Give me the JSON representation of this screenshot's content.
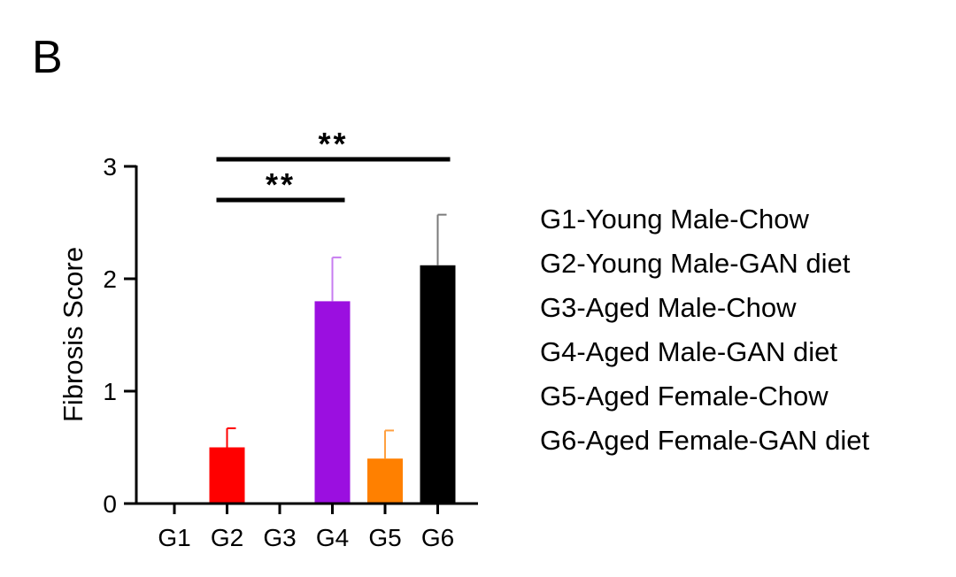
{
  "chart_data": {
    "type": "bar",
    "panel_label": "B",
    "title": "",
    "xlabel": "",
    "ylabel": "Fibrosis Score",
    "ylim": [
      0,
      3
    ],
    "yticks": [
      0,
      1,
      2,
      3
    ],
    "categories": [
      "G1",
      "G2",
      "G3",
      "G4",
      "G5",
      "G6"
    ],
    "values": [
      0,
      0.5,
      0,
      1.8,
      0.4,
      2.12
    ],
    "error_upper": [
      0,
      0.17,
      0,
      0.39,
      0.25,
      0.45
    ],
    "colors": [
      "#ff0000",
      "#ff0000",
      "#ff0000",
      "#9b0fe0",
      "#ff8000",
      "#000000"
    ],
    "error_colors": [
      "#ff0000",
      "#ff0000",
      "#ff0000",
      "#c77df0",
      "#ffa040",
      "#7a7a7a"
    ],
    "significance": [
      {
        "from": "G2",
        "to": "G6",
        "label": "**"
      },
      {
        "from": "G2",
        "to": "G4",
        "label": "**"
      }
    ],
    "legend": [
      "G1-Young Male-Chow",
      "G2-Young Male-GAN diet",
      "G3-Aged Male-Chow",
      "G4-Aged Male-GAN diet",
      "G5-Aged Female-Chow",
      "G6-Aged Female-GAN diet"
    ],
    "legend_placement": "right"
  }
}
